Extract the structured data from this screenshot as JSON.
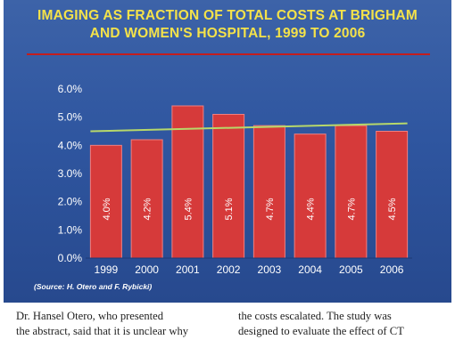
{
  "chart_data": {
    "type": "bar",
    "title": "IMAGING AS FRACTION OF TOTAL COSTS AT BRIGHAM AND WOMEN'S HOSPITAL, 1999 TO 2006",
    "title_lines": [
      "IMAGING AS FRACTION OF TOTAL COSTS AT BRIGHAM",
      "AND WOMEN'S HOSPITAL, 1999 TO 2006"
    ],
    "categories": [
      "1999",
      "2000",
      "2001",
      "2002",
      "2003",
      "2004",
      "2005",
      "2006"
    ],
    "values": [
      4.0,
      4.2,
      5.4,
      5.1,
      4.7,
      4.4,
      4.7,
      4.5
    ],
    "data_labels": [
      "4.0%",
      "4.2%",
      "5.4%",
      "5.1%",
      "4.7%",
      "4.4%",
      "4.7%",
      "4.5%"
    ],
    "yticks": [
      "0.0%",
      "1.0%",
      "2.0%",
      "3.0%",
      "4.0%",
      "5.0%",
      "6.0%"
    ],
    "ylim": [
      0,
      6
    ],
    "trendline": {
      "start": 4.5,
      "end": 4.78
    },
    "grid": false,
    "source": "(Source: H. Otero and F. Rybicki)",
    "colors": {
      "bar": "#d63a3a",
      "bar_edge": "#f08080",
      "trend": "#b7d86a",
      "title": "#f4e24a",
      "background": "#2f56a0",
      "rule": "#c41d1d"
    }
  },
  "article": {
    "left_lines": [
      "Dr. Hansel Otero, who presented",
      "the abstract, said that it is unclear why"
    ],
    "right_lines": [
      "the costs escalated. The study was",
      "designed to evaluate the effect of CT"
    ]
  }
}
